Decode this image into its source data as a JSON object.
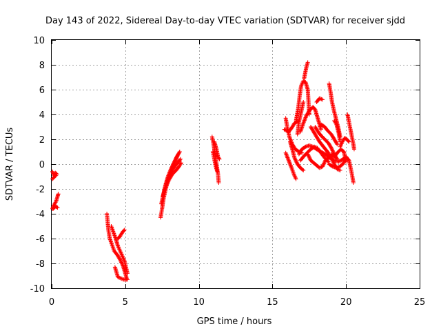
{
  "chart_data": {
    "type": "scatter",
    "title": "Day 143 of 2022, Sidereal Day-to-day VTEC variation (SDTVAR) for receiver sjdd",
    "xlabel": "GPS time / hours",
    "ylabel": "SDTVAR / TECUs",
    "xlim": [
      0,
      25
    ],
    "ylim": [
      -10,
      10
    ],
    "xticks": [
      0,
      5,
      10,
      15,
      20,
      25
    ],
    "yticks": [
      -10,
      -8,
      -6,
      -4,
      -2,
      0,
      2,
      4,
      6,
      8,
      10
    ],
    "grid": true,
    "marker": "+",
    "color": "#ff0000",
    "tracks": [
      [
        [
          0.05,
          -0.6
        ],
        [
          0.15,
          -0.9
        ],
        [
          0.25,
          -0.7
        ],
        [
          0.35,
          -0.8
        ]
      ],
      [
        [
          0.05,
          -1.2
        ],
        [
          0.2,
          -1.0
        ],
        [
          0.3,
          -0.9
        ]
      ],
      [
        [
          0.05,
          -3.6
        ],
        [
          0.15,
          -3.3
        ],
        [
          0.3,
          -3.0
        ],
        [
          0.4,
          -2.6
        ],
        [
          0.45,
          -2.4
        ]
      ],
      [
        [
          0.1,
          -3.6
        ],
        [
          0.25,
          -3.4
        ],
        [
          0.4,
          -3.5
        ]
      ],
      [
        [
          3.75,
          -4.0
        ],
        [
          3.8,
          -4.6
        ],
        [
          3.85,
          -5.3
        ],
        [
          3.95,
          -6.0
        ],
        [
          4.1,
          -6.5
        ],
        [
          4.25,
          -7.0
        ],
        [
          4.45,
          -7.3
        ],
        [
          4.65,
          -7.7
        ],
        [
          4.85,
          -8.2
        ],
        [
          5.0,
          -8.8
        ],
        [
          5.1,
          -9.2
        ]
      ],
      [
        [
          4.05,
          -5.0
        ],
        [
          4.2,
          -5.5
        ],
        [
          4.35,
          -6.0
        ],
        [
          4.5,
          -6.6
        ],
        [
          4.65,
          -7.0
        ],
        [
          4.8,
          -7.4
        ],
        [
          4.95,
          -7.8
        ],
        [
          5.05,
          -8.3
        ],
        [
          5.15,
          -8.8
        ]
      ],
      [
        [
          4.5,
          -6.0
        ],
        [
          4.65,
          -5.8
        ],
        [
          4.8,
          -5.5
        ],
        [
          4.95,
          -5.3
        ]
      ],
      [
        [
          4.3,
          -8.3
        ],
        [
          4.4,
          -8.7
        ],
        [
          4.5,
          -9.1
        ],
        [
          4.7,
          -9.2
        ],
        [
          4.9,
          -9.3
        ],
        [
          5.15,
          -9.3
        ]
      ],
      [
        [
          7.4,
          -4.3
        ],
        [
          7.5,
          -3.6
        ],
        [
          7.6,
          -2.8
        ],
        [
          7.75,
          -2.0
        ],
        [
          7.9,
          -1.3
        ],
        [
          8.05,
          -0.7
        ],
        [
          8.25,
          -0.1
        ],
        [
          8.45,
          0.4
        ],
        [
          8.6,
          0.8
        ]
      ],
      [
        [
          7.45,
          -3.2
        ],
        [
          7.6,
          -2.4
        ],
        [
          7.75,
          -1.6
        ],
        [
          7.9,
          -1.0
        ],
        [
          8.1,
          -0.4
        ],
        [
          8.3,
          0.1
        ],
        [
          8.5,
          0.6
        ],
        [
          8.7,
          1.0
        ]
      ],
      [
        [
          7.55,
          -2.6
        ],
        [
          7.7,
          -1.9
        ],
        [
          7.85,
          -1.3
        ],
        [
          8.05,
          -0.8
        ],
        [
          8.3,
          -0.3
        ],
        [
          8.55,
          0.1
        ],
        [
          8.75,
          0.4
        ]
      ],
      [
        [
          7.7,
          -2.0
        ],
        [
          7.85,
          -1.6
        ],
        [
          8.0,
          -1.2
        ],
        [
          8.2,
          -0.8
        ],
        [
          8.45,
          -0.5
        ],
        [
          8.65,
          -0.2
        ],
        [
          8.8,
          0.1
        ]
      ],
      [
        [
          10.9,
          2.2
        ],
        [
          11.0,
          1.6
        ],
        [
          11.1,
          0.8
        ],
        [
          11.2,
          0.0
        ],
        [
          11.3,
          -0.8
        ],
        [
          11.35,
          -1.5
        ]
      ],
      [
        [
          10.95,
          1.0
        ],
        [
          11.05,
          0.4
        ],
        [
          11.15,
          -0.2
        ],
        [
          11.25,
          -0.6
        ]
      ],
      [
        [
          11.05,
          1.8
        ],
        [
          11.2,
          1.2
        ],
        [
          11.3,
          0.6
        ],
        [
          11.4,
          0.4
        ]
      ],
      [
        [
          15.8,
          2.8
        ],
        [
          16.1,
          2.6
        ],
        [
          16.3,
          2.9
        ],
        [
          16.5,
          3.3
        ],
        [
          16.75,
          3.5
        ]
      ],
      [
        [
          15.9,
          3.7
        ],
        [
          16.0,
          3.0
        ],
        [
          16.15,
          2.2
        ],
        [
          16.35,
          1.6
        ],
        [
          16.55,
          1.2
        ],
        [
          16.8,
          1.0
        ],
        [
          17.0,
          0.9
        ]
      ],
      [
        [
          15.9,
          0.9
        ],
        [
          16.1,
          0.3
        ],
        [
          16.3,
          -0.3
        ],
        [
          16.45,
          -0.8
        ],
        [
          16.6,
          -1.2
        ]
      ],
      [
        [
          16.2,
          1.8
        ],
        [
          16.35,
          1.2
        ],
        [
          16.5,
          0.5
        ],
        [
          16.7,
          0.0
        ],
        [
          16.9,
          -0.3
        ],
        [
          17.1,
          -0.5
        ]
      ],
      [
        [
          16.6,
          3.5
        ],
        [
          16.75,
          4.5
        ],
        [
          16.85,
          5.5
        ],
        [
          16.95,
          6.3
        ],
        [
          17.1,
          6.7
        ],
        [
          17.25,
          6.6
        ],
        [
          17.4,
          6.0
        ],
        [
          17.45,
          5.0
        ],
        [
          17.5,
          4.0
        ]
      ],
      [
        [
          16.7,
          2.4
        ],
        [
          16.8,
          3.4
        ],
        [
          16.95,
          4.2
        ],
        [
          17.1,
          5.0
        ]
      ],
      [
        [
          17.15,
          6.9
        ],
        [
          17.3,
          7.8
        ],
        [
          17.4,
          8.2
        ]
      ],
      [
        [
          16.9,
          2.6
        ],
        [
          17.1,
          3.3
        ],
        [
          17.3,
          3.9
        ],
        [
          17.5,
          4.3
        ],
        [
          17.75,
          4.6
        ],
        [
          17.9,
          4.4
        ],
        [
          18.0,
          4.0
        ],
        [
          18.15,
          3.4
        ],
        [
          18.3,
          2.8
        ]
      ],
      [
        [
          16.8,
          0.8
        ],
        [
          17.0,
          1.2
        ],
        [
          17.25,
          1.4
        ],
        [
          17.5,
          1.5
        ],
        [
          17.75,
          1.4
        ],
        [
          18.0,
          1.2
        ],
        [
          18.3,
          1.0
        ],
        [
          18.6,
          0.8
        ],
        [
          18.9,
          0.5
        ],
        [
          19.2,
          0.3
        ],
        [
          19.5,
          0.2
        ],
        [
          19.8,
          0.4
        ],
        [
          20.0,
          0.6
        ],
        [
          20.2,
          0.3
        ],
        [
          20.4,
          -0.8
        ],
        [
          20.5,
          -1.5
        ]
      ],
      [
        [
          16.9,
          0.3
        ],
        [
          17.1,
          0.6
        ],
        [
          17.35,
          0.9
        ],
        [
          17.6,
          1.2
        ],
        [
          17.85,
          1.4
        ],
        [
          18.05,
          1.3
        ],
        [
          18.3,
          0.9
        ],
        [
          18.55,
          0.5
        ],
        [
          18.8,
          0.2
        ]
      ],
      [
        [
          17.4,
          0.8
        ],
        [
          17.6,
          0.3
        ],
        [
          17.8,
          0.1
        ],
        [
          18.0,
          -0.1
        ],
        [
          18.2,
          -0.3
        ],
        [
          18.4,
          -0.2
        ],
        [
          18.6,
          0.3
        ],
        [
          18.9,
          0.6
        ]
      ],
      [
        [
          17.6,
          3.0
        ],
        [
          17.8,
          2.6
        ],
        [
          18.0,
          2.2
        ],
        [
          18.2,
          1.8
        ],
        [
          18.4,
          1.5
        ],
        [
          18.6,
          1.2
        ],
        [
          18.8,
          0.9
        ],
        [
          19.0,
          0.5
        ],
        [
          19.2,
          0.0
        ],
        [
          19.4,
          -0.4
        ],
        [
          19.6,
          -0.5
        ]
      ],
      [
        [
          17.9,
          3.0
        ],
        [
          18.1,
          2.6
        ],
        [
          18.3,
          2.3
        ],
        [
          18.55,
          2.0
        ],
        [
          18.8,
          1.7
        ],
        [
          19.0,
          1.3
        ],
        [
          19.2,
          0.8
        ],
        [
          19.4,
          0.4
        ]
      ],
      [
        [
          18.0,
          5.0
        ],
        [
          18.2,
          5.3
        ],
        [
          18.4,
          5.2
        ]
      ],
      [
        [
          18.3,
          3.2
        ],
        [
          18.55,
          3.0
        ],
        [
          18.75,
          2.7
        ],
        [
          19.0,
          2.4
        ],
        [
          19.2,
          2.0
        ],
        [
          19.4,
          1.6
        ]
      ],
      [
        [
          18.85,
          6.5
        ],
        [
          18.95,
          5.8
        ],
        [
          19.05,
          5.0
        ],
        [
          19.2,
          4.2
        ],
        [
          19.35,
          3.5
        ],
        [
          19.5,
          2.8
        ],
        [
          19.6,
          2.2
        ]
      ],
      [
        [
          19.2,
          3.5
        ],
        [
          19.35,
          3.2
        ],
        [
          19.5,
          2.5
        ],
        [
          19.6,
          1.8
        ]
      ],
      [
        [
          19.6,
          1.4
        ],
        [
          19.75,
          1.8
        ],
        [
          19.9,
          2.1
        ],
        [
          20.05,
          2.0
        ],
        [
          20.2,
          1.8
        ]
      ],
      [
        [
          19.0,
          0.8
        ],
        [
          19.2,
          0.6
        ],
        [
          19.4,
          0.9
        ],
        [
          19.65,
          1.2
        ],
        [
          19.85,
          1.0
        ],
        [
          20.0,
          0.2
        ]
      ],
      [
        [
          20.1,
          4.0
        ],
        [
          20.2,
          3.4
        ],
        [
          20.3,
          2.8
        ],
        [
          20.4,
          2.2
        ],
        [
          20.5,
          1.6
        ],
        [
          20.55,
          1.2
        ]
      ],
      [
        [
          18.85,
          0.0
        ],
        [
          19.1,
          -0.2
        ],
        [
          19.4,
          -0.3
        ],
        [
          19.7,
          -0.1
        ],
        [
          19.95,
          0.3
        ]
      ]
    ]
  }
}
